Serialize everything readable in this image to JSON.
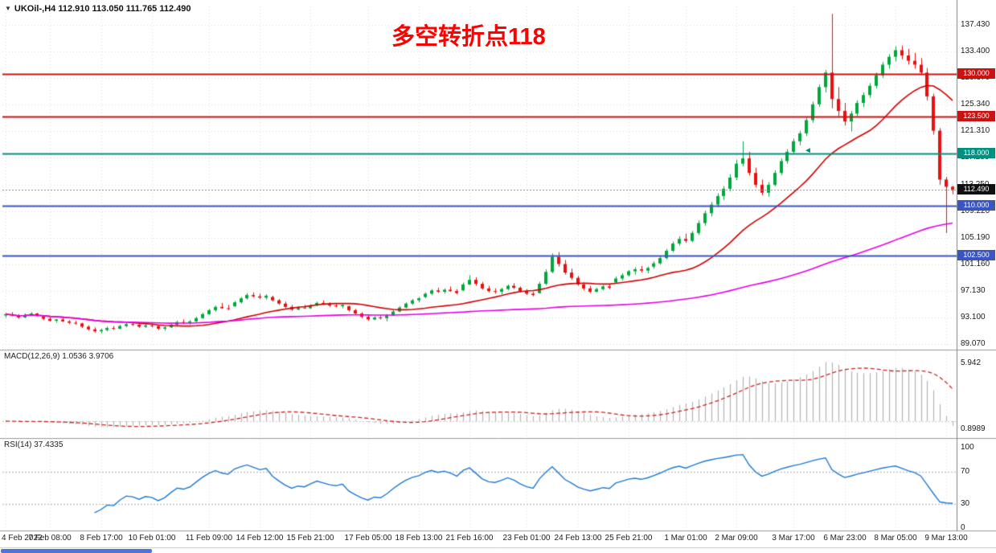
{
  "header": {
    "symbol_period": "UKOil-,H4",
    "ohlc": "112.910 113.050 111.765 112.490"
  },
  "annotation": {
    "text": "多空转折点118",
    "color": "#FF0000"
  },
  "icons": {
    "collapse": "▼",
    "arrow_marker": "◄"
  },
  "chart_data": [
    {
      "type": "candlestick",
      "symbol": "UKOil-",
      "period": "H4",
      "current_bar": {
        "open": 112.91,
        "high": 113.05,
        "low": 111.765,
        "close": 112.49
      },
      "ylim": [
        88.59,
        140.23
      ],
      "price_axis_labels": [
        "137.430",
        "133.400",
        "129.370",
        "125.340",
        "121.310",
        "117.280",
        "113.250",
        "109.220",
        "105.190",
        "101.160",
        "97.130",
        "93.100",
        "89.070"
      ],
      "hlines": [
        {
          "price": 130.0,
          "label": "130.000",
          "color": "#CC1111"
        },
        {
          "price": 123.5,
          "label": "123.500",
          "color": "#CC1111"
        },
        {
          "price": 118.0,
          "label": "118.000",
          "color": "#009080"
        },
        {
          "price": 110.0,
          "label": "110.000",
          "color": "#3A55C0"
        },
        {
          "price": 102.5,
          "label": "102.500",
          "color": "#3A55C0"
        }
      ],
      "current_price": {
        "value": 112.49,
        "label": "112.490",
        "box_color": "#101010"
      },
      "moving_averages": [
        {
          "period": 20,
          "color": "#D40000"
        },
        {
          "period": 100,
          "color": "#E800E8"
        }
      ],
      "up_color": "#00A83C",
      "down_color": "#E81010",
      "candles": [
        [
          93.4,
          93.8,
          93.1,
          93.6
        ],
        [
          93.6,
          93.9,
          93.3,
          93.4
        ],
        [
          93.4,
          93.6,
          92.9,
          93.1
        ],
        [
          93.1,
          93.7,
          93.0,
          93.5
        ],
        [
          93.5,
          93.9,
          93.4,
          93.7
        ],
        [
          93.7,
          93.8,
          93.2,
          93.3
        ],
        [
          93.2,
          93.4,
          92.7,
          92.9
        ],
        [
          92.9,
          93.1,
          92.5,
          92.6
        ],
        [
          92.6,
          92.9,
          92.3,
          92.8
        ],
        [
          92.8,
          93.0,
          92.4,
          92.5
        ],
        [
          92.5,
          92.7,
          92.1,
          92.3
        ],
        [
          92.3,
          92.6,
          92.0,
          92.2
        ],
        [
          92.2,
          92.3,
          91.5,
          91.7
        ],
        [
          91.7,
          91.9,
          91.1,
          91.3
        ],
        [
          91.3,
          91.6,
          90.8,
          91.0
        ],
        [
          91.0,
          91.4,
          90.7,
          91.2
        ],
        [
          91.2,
          91.7,
          91.0,
          91.5
        ],
        [
          91.5,
          91.8,
          91.2,
          91.4
        ],
        [
          91.4,
          92.0,
          91.3,
          91.8
        ],
        [
          91.8,
          92.3,
          91.6,
          92.1
        ],
        [
          92.1,
          92.4,
          91.8,
          92.0
        ],
        [
          92.0,
          92.2,
          91.5,
          91.7
        ],
        [
          91.7,
          92.1,
          91.5,
          91.9
        ],
        [
          91.9,
          92.2,
          91.6,
          91.8
        ],
        [
          91.8,
          92.0,
          91.2,
          91.4
        ],
        [
          91.4,
          91.8,
          91.1,
          91.6
        ],
        [
          91.6,
          92.2,
          91.5,
          92.0
        ],
        [
          92.0,
          92.6,
          91.9,
          92.4
        ],
        [
          92.4,
          92.8,
          92.1,
          92.3
        ],
        [
          92.3,
          92.7,
          92.0,
          92.5
        ],
        [
          92.5,
          93.2,
          92.4,
          93.0
        ],
        [
          93.0,
          93.8,
          92.9,
          93.6
        ],
        [
          93.6,
          94.4,
          93.5,
          94.2
        ],
        [
          94.2,
          94.9,
          94.0,
          94.7
        ],
        [
          94.7,
          95.3,
          94.4,
          94.5
        ],
        [
          94.5,
          95.0,
          94.2,
          94.4
        ],
        [
          94.8,
          95.6,
          94.7,
          95.4
        ],
        [
          95.4,
          96.2,
          95.2,
          96.0
        ],
        [
          96.0,
          96.8,
          95.8,
          96.5
        ],
        [
          96.5,
          96.9,
          96.1,
          96.3
        ],
        [
          96.3,
          96.7,
          95.9,
          96.1
        ],
        [
          96.1,
          96.6,
          95.8,
          96.4
        ],
        [
          96.2,
          96.4,
          95.5,
          95.7
        ],
        [
          95.7,
          95.9,
          95.0,
          95.2
        ],
        [
          95.2,
          95.5,
          94.5,
          94.7
        ],
        [
          94.7,
          95.0,
          94.1,
          94.3
        ],
        [
          94.3,
          94.8,
          94.2,
          94.6
        ],
        [
          94.6,
          95.0,
          94.4,
          94.5
        ],
        [
          94.5,
          95.1,
          94.4,
          94.9
        ],
        [
          94.9,
          95.5,
          94.8,
          95.3
        ],
        [
          95.3,
          95.7,
          95.0,
          95.1
        ],
        [
          95.1,
          95.4,
          94.7,
          94.9
        ],
        [
          94.9,
          95.2,
          94.6,
          94.8
        ],
        [
          94.8,
          95.1,
          94.5,
          95.0
        ],
        [
          94.8,
          94.9,
          94.0,
          94.2
        ],
        [
          94.2,
          94.4,
          93.5,
          93.7
        ],
        [
          93.7,
          93.9,
          93.0,
          93.2
        ],
        [
          93.2,
          93.5,
          92.6,
          92.8
        ],
        [
          92.8,
          93.3,
          92.7,
          93.1
        ],
        [
          93.1,
          93.4,
          92.8,
          93.0
        ],
        [
          93.0,
          93.6,
          92.5,
          93.4
        ],
        [
          93.4,
          94.2,
          93.3,
          94.0
        ],
        [
          94.0,
          94.8,
          93.9,
          94.6
        ],
        [
          94.6,
          95.4,
          94.5,
          95.2
        ],
        [
          95.2,
          95.9,
          95.0,
          95.7
        ],
        [
          95.7,
          96.2,
          95.4,
          96.0
        ],
        [
          96.2,
          96.9,
          96.0,
          96.7
        ],
        [
          96.7,
          97.4,
          96.5,
          97.2
        ],
        [
          97.2,
          97.6,
          96.8,
          97.0
        ],
        [
          97.0,
          97.5,
          96.7,
          97.3
        ],
        [
          97.3,
          97.8,
          97.0,
          97.1
        ],
        [
          97.1,
          97.4,
          96.6,
          96.8
        ],
        [
          97.2,
          98.4,
          97.1,
          98.1
        ],
        [
          98.1,
          99.5,
          98.0,
          98.8
        ],
        [
          98.8,
          99.2,
          97.9,
          98.2
        ],
        [
          98.2,
          98.5,
          97.3,
          97.5
        ],
        [
          97.5,
          97.9,
          96.9,
          97.1
        ],
        [
          97.1,
          97.5,
          96.7,
          97.0
        ],
        [
          97.0,
          97.6,
          96.6,
          97.4
        ],
        [
          97.4,
          98.1,
          97.2,
          97.9
        ],
        [
          97.9,
          98.3,
          97.4,
          97.6
        ],
        [
          97.6,
          97.8,
          96.9,
          97.1
        ],
        [
          97.1,
          97.4,
          96.5,
          96.7
        ],
        [
          96.7,
          97.0,
          96.3,
          96.5
        ],
        [
          96.8,
          98.5,
          96.7,
          98.2
        ],
        [
          98.2,
          100.4,
          98.0,
          100.0
        ],
        [
          100.0,
          102.8,
          99.8,
          102.3
        ],
        [
          102.3,
          103.0,
          100.8,
          101.2
        ],
        [
          101.2,
          101.8,
          99.6,
          99.9
        ],
        [
          99.9,
          100.5,
          98.8,
          99.1
        ],
        [
          99.1,
          99.4,
          97.9,
          98.1
        ],
        [
          98.1,
          98.4,
          97.2,
          97.5
        ],
        [
          97.5,
          97.9,
          96.8,
          97.0
        ],
        [
          97.0,
          97.6,
          96.9,
          97.4
        ],
        [
          97.4,
          98.0,
          97.2,
          97.8
        ],
        [
          97.8,
          98.2,
          97.4,
          97.6
        ],
        [
          98.4,
          99.3,
          98.2,
          99.0
        ],
        [
          99.0,
          99.8,
          98.7,
          99.5
        ],
        [
          99.5,
          100.3,
          99.3,
          100.1
        ],
        [
          100.1,
          100.7,
          99.6,
          100.4
        ],
        [
          100.4,
          100.9,
          99.9,
          100.2
        ],
        [
          100.2,
          100.8,
          99.8,
          100.6
        ],
        [
          100.8,
          101.6,
          100.5,
          101.3
        ],
        [
          101.3,
          102.4,
          101.1,
          102.1
        ],
        [
          102.1,
          103.5,
          101.9,
          103.2
        ],
        [
          103.2,
          104.6,
          103.0,
          104.3
        ],
        [
          104.3,
          105.4,
          104.0,
          105.0
        ],
        [
          105.0,
          105.8,
          104.4,
          104.7
        ],
        [
          104.7,
          106.2,
          104.5,
          105.9
        ],
        [
          105.9,
          107.8,
          105.6,
          107.4
        ],
        [
          107.4,
          109.3,
          107.0,
          108.9
        ],
        [
          108.9,
          110.6,
          108.4,
          110.2
        ],
        [
          110.2,
          111.9,
          109.8,
          111.5
        ],
        [
          111.5,
          113.0,
          110.9,
          112.6
        ],
        [
          112.6,
          114.8,
          112.2,
          114.3
        ],
        [
          114.3,
          117.0,
          113.9,
          116.4
        ],
        [
          116.4,
          119.8,
          116.0,
          117.2
        ],
        [
          117.2,
          118.2,
          114.6,
          115.0
        ],
        [
          115.0,
          115.8,
          112.8,
          113.2
        ],
        [
          113.2,
          114.0,
          111.6,
          112.0
        ],
        [
          112.0,
          113.6,
          111.4,
          113.2
        ],
        [
          113.2,
          115.4,
          113.0,
          115.0
        ],
        [
          115.0,
          117.2,
          114.7,
          116.8
        ],
        [
          116.8,
          118.6,
          116.4,
          118.2
        ],
        [
          118.2,
          120.2,
          117.9,
          119.8
        ],
        [
          119.8,
          121.4,
          119.2,
          121.0
        ],
        [
          121.0,
          123.4,
          120.6,
          123.0
        ],
        [
          123.0,
          125.8,
          122.6,
          125.4
        ],
        [
          125.4,
          128.4,
          125.0,
          128.0
        ],
        [
          128.0,
          130.6,
          127.2,
          130.2
        ],
        [
          130.2,
          139.1,
          124.8,
          126.2
        ],
        [
          126.2,
          128.0,
          123.6,
          124.4
        ],
        [
          124.4,
          125.6,
          122.2,
          122.8
        ],
        [
          122.8,
          124.4,
          121.3,
          124.0
        ],
        [
          124.0,
          126.0,
          123.6,
          125.6
        ],
        [
          125.6,
          127.2,
          125.0,
          126.8
        ],
        [
          126.8,
          128.6,
          126.4,
          128.2
        ],
        [
          128.2,
          130.2,
          127.8,
          129.8
        ],
        [
          129.8,
          131.8,
          129.4,
          131.4
        ],
        [
          131.4,
          133.0,
          130.8,
          132.6
        ],
        [
          132.6,
          134.2,
          131.9,
          133.6
        ],
        [
          133.6,
          134.3,
          132.2,
          132.8
        ],
        [
          132.8,
          133.8,
          131.4,
          132.0
        ],
        [
          132.0,
          133.2,
          130.8,
          131.4
        ],
        [
          131.4,
          132.4,
          129.8,
          130.2
        ],
        [
          130.2,
          130.9,
          126.0,
          126.6
        ],
        [
          126.6,
          127.0,
          120.8,
          121.4
        ],
        [
          121.4,
          121.8,
          113.2,
          114.0
        ],
        [
          114.0,
          114.4,
          105.9,
          112.9
        ],
        [
          112.91,
          113.05,
          111.765,
          112.49
        ]
      ]
    },
    {
      "type": "macd",
      "header": "MACD(12,26,9) 1.0536 3.9706",
      "fast": 12,
      "slow": 26,
      "signal": 9,
      "main_value": 1.0536,
      "signal_value": 3.9706,
      "axis_labels": [
        "5.942",
        "0.8989"
      ],
      "histogram_color": "#B4B4B4",
      "signal_color": "#CC2222"
    },
    {
      "type": "rsi",
      "header": "RSI(14) 37.4335",
      "period": 14,
      "value": 37.4335,
      "axis_labels": [
        "100",
        "70",
        "30",
        "0"
      ],
      "levels": [
        70,
        30
      ],
      "line_color": "#1E7AD4"
    }
  ],
  "time_axis": {
    "labels": [
      {
        "text": "4 Feb 2022",
        "bar": 0
      },
      {
        "text": "7 Feb 08:00",
        "bar": 7
      },
      {
        "text": "8 Feb 17:00",
        "bar": 15
      },
      {
        "text": "10 Feb 01:00",
        "bar": 23
      },
      {
        "text": "11 Feb 09:00",
        "bar": 32
      },
      {
        "text": "14 Feb 12:00",
        "bar": 40
      },
      {
        "text": "15 Feb 21:00",
        "bar": 48
      },
      {
        "text": "17 Feb 05:00",
        "bar": 57
      },
      {
        "text": "18 Feb 13:00",
        "bar": 65
      },
      {
        "text": "21 Feb 16:00",
        "bar": 73
      },
      {
        "text": "23 Feb 01:00",
        "bar": 82
      },
      {
        "text": "24 Feb 13:00",
        "bar": 90
      },
      {
        "text": "25 Feb 21:00",
        "bar": 98
      },
      {
        "text": "1 Mar 01:00",
        "bar": 107
      },
      {
        "text": "2 Mar 09:00",
        "bar": 115
      },
      {
        "text": "3 Mar 17:00",
        "bar": 124
      },
      {
        "text": "6 Mar 23:00",
        "bar": 132
      },
      {
        "text": "8 Mar 05:00",
        "bar": 140
      },
      {
        "text": "9 Mar 13:00",
        "bar": 148
      }
    ]
  }
}
